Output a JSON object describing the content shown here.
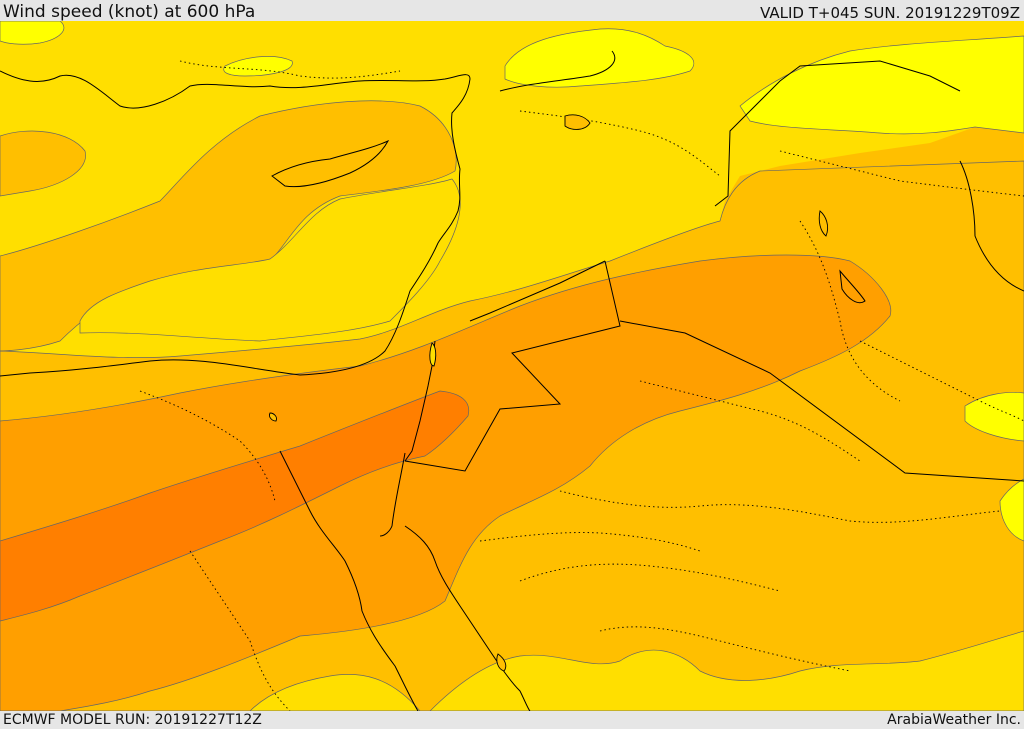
{
  "header": {
    "title": "Wind speed (knot) at 600 hPa",
    "valid": "VALID T+045 SUN. 20191229T09Z"
  },
  "footer": {
    "model_run": "ECMWF MODEL RUN: 20191227T12Z",
    "credit": "ArabiaWeather Inc."
  },
  "map": {
    "fill_colors": {
      "lightest": "#ffff00",
      "light": "#ffdf00",
      "medium": "#ffbf00",
      "strong": "#ff9f00",
      "strongest": "#ff7f00"
    },
    "line_colors": {
      "boundary": "#000000",
      "contour": "#555555"
    }
  }
}
